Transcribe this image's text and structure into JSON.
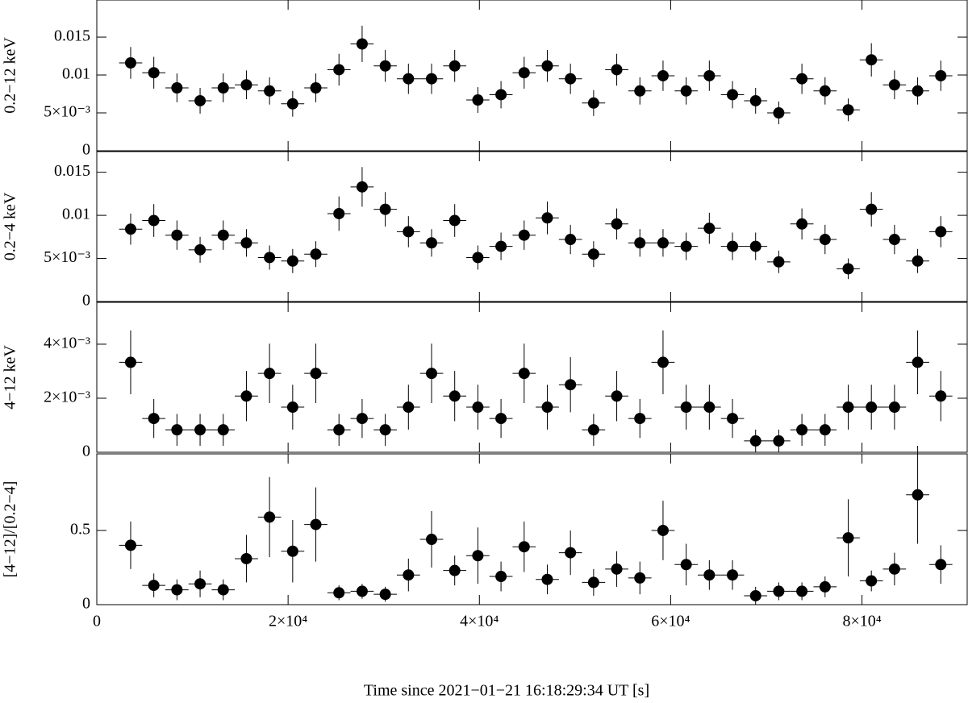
{
  "chart_data": [
    {
      "type": "scatter",
      "ylabel": "0.2−12 keV",
      "color": "#000000",
      "x": [
        3540,
        5960,
        8380,
        10800,
        13220,
        15640,
        18060,
        20480,
        22900,
        25320,
        27740,
        30160,
        32580,
        35000,
        37420,
        39840,
        42260,
        44680,
        47100,
        49520,
        51940,
        54360,
        56780,
        59200,
        61620,
        64040,
        66460,
        68880,
        71300,
        73720,
        76140,
        78560,
        80980,
        83400,
        85820,
        88240
      ],
      "xerr": 1210,
      "xlim": [
        0,
        91000
      ],
      "values": [
        0.0116,
        0.0103,
        0.0083,
        0.0066,
        0.0083,
        0.0087,
        0.0079,
        0.0062,
        0.0083,
        0.0107,
        0.0141,
        0.0112,
        0.0095,
        0.0095,
        0.0112,
        0.0067,
        0.0074,
        0.0103,
        0.0112,
        0.0095,
        0.0063,
        0.0107,
        0.0079,
        0.0099,
        0.0079,
        0.0099,
        0.0074,
        0.0066,
        0.005,
        0.0095,
        0.0079,
        0.0054,
        0.012,
        0.0087,
        0.0079,
        0.0099
      ],
      "yerr": [
        0.0021,
        0.0021,
        0.0019,
        0.0017,
        0.0019,
        0.0019,
        0.0018,
        0.0017,
        0.0019,
        0.0021,
        0.0024,
        0.0021,
        0.002,
        0.002,
        0.0021,
        0.0017,
        0.0018,
        0.0021,
        0.0021,
        0.002,
        0.0017,
        0.0021,
        0.0018,
        0.002,
        0.0018,
        0.002,
        0.0018,
        0.0017,
        0.0015,
        0.002,
        0.0018,
        0.0015,
        0.0022,
        0.0019,
        0.0018,
        0.002
      ],
      "ylim": [
        0,
        0.0199
      ],
      "yticks": [
        0,
        {
          "value": 0.005,
          "label": "5×10⁻³"
        },
        0.01,
        0.015
      ]
    },
    {
      "type": "scatter",
      "ylabel": "0.2−4 keV",
      "color": "#000000",
      "x": [
        3540,
        5960,
        8380,
        10800,
        13220,
        15640,
        18060,
        20480,
        22900,
        25320,
        27740,
        30160,
        32580,
        35000,
        37420,
        39840,
        42260,
        44680,
        47100,
        49520,
        51940,
        54360,
        56780,
        59200,
        61620,
        64040,
        66460,
        68880,
        71300,
        73720,
        76140,
        78560,
        80980,
        83400,
        85820,
        88240
      ],
      "xerr": 1210,
      "xlim": [
        0,
        91000
      ],
      "values": [
        0.0084,
        0.0094,
        0.0077,
        0.006,
        0.0077,
        0.0068,
        0.0051,
        0.0047,
        0.0055,
        0.0102,
        0.0133,
        0.0107,
        0.0081,
        0.0068,
        0.0094,
        0.0051,
        0.0064,
        0.0077,
        0.0097,
        0.0072,
        0.0055,
        0.009,
        0.0068,
        0.0068,
        0.0064,
        0.0085,
        0.0064,
        0.0064,
        0.0046,
        0.009,
        0.0072,
        0.0038,
        0.0107,
        0.0072,
        0.0047,
        0.0081
      ],
      "yerr": [
        0.0018,
        0.0019,
        0.0017,
        0.0015,
        0.0017,
        0.0016,
        0.0014,
        0.0014,
        0.0015,
        0.002,
        0.0023,
        0.002,
        0.0018,
        0.0016,
        0.0019,
        0.0014,
        0.0016,
        0.0017,
        0.0019,
        0.0017,
        0.0015,
        0.0018,
        0.0016,
        0.0016,
        0.0016,
        0.0018,
        0.0016,
        0.0016,
        0.0013,
        0.0018,
        0.0017,
        0.0012,
        0.002,
        0.0017,
        0.0014,
        0.0018
      ],
      "ylim": [
        0,
        0.0174
      ],
      "yticks": [
        0,
        {
          "value": 0.005,
          "label": "5×10⁻³"
        },
        0.01,
        0.015
      ]
    },
    {
      "type": "scatter",
      "ylabel": "4−12 keV",
      "color": "#000000",
      "x": [
        3540,
        5960,
        8380,
        10800,
        13220,
        15640,
        18060,
        20480,
        22900,
        25320,
        27740,
        30160,
        32580,
        35000,
        37420,
        39840,
        42260,
        44680,
        47100,
        49520,
        51940,
        54360,
        56780,
        59200,
        61620,
        64040,
        66460,
        68880,
        71300,
        73720,
        76140,
        78560,
        80980,
        83400,
        85820,
        88240
      ],
      "xerr": 1210,
      "xlim": [
        0,
        91000
      ],
      "values": [
        0.00333,
        0.00125,
        0.00083,
        0.00083,
        0.00083,
        0.00208,
        0.00292,
        0.00167,
        0.00292,
        0.00083,
        0.00125,
        0.00083,
        0.00167,
        0.00292,
        0.00208,
        0.00167,
        0.00125,
        0.00292,
        0.00167,
        0.0025,
        0.00083,
        0.00208,
        0.00125,
        0.00333,
        0.00167,
        0.00167,
        0.00125,
        0.00042,
        0.00042,
        0.00083,
        0.00083,
        0.00167,
        0.00167,
        0.00167,
        0.00333,
        0.00208
      ],
      "yerr": [
        0.00118,
        0.00072,
        0.00059,
        0.00059,
        0.00059,
        0.00093,
        0.0011,
        0.00083,
        0.0011,
        0.00059,
        0.00072,
        0.00059,
        0.00083,
        0.0011,
        0.00093,
        0.00083,
        0.00072,
        0.0011,
        0.00083,
        0.00102,
        0.00059,
        0.00093,
        0.00072,
        0.00118,
        0.00083,
        0.00083,
        0.00072,
        0.00042,
        0.00042,
        0.00059,
        0.00059,
        0.00083,
        0.00083,
        0.00083,
        0.00118,
        0.00093
      ],
      "ylim": [
        0,
        0.00555
      ],
      "yticks": [
        0,
        {
          "value": 0.002,
          "label": "2×10⁻³"
        },
        {
          "value": 0.004,
          "label": "4×10⁻³"
        }
      ]
    },
    {
      "type": "scatter",
      "ylabel": "[4−12]/[0.2−4]",
      "color": "#000000",
      "x": [
        3540,
        5960,
        8380,
        10800,
        13220,
        15640,
        18060,
        20480,
        22900,
        25320,
        27740,
        30160,
        32580,
        35000,
        37420,
        39840,
        42260,
        44680,
        47100,
        49520,
        51940,
        54360,
        56780,
        59200,
        61620,
        64040,
        66460,
        68880,
        71300,
        73720,
        76140,
        78560,
        80980,
        83400,
        85820,
        88240
      ],
      "xerr": 1210,
      "xlim": [
        0,
        91000
      ],
      "values": [
        0.4,
        0.13,
        0.1,
        0.14,
        0.1,
        0.31,
        0.59,
        0.36,
        0.54,
        0.08,
        0.09,
        0.07,
        0.2,
        0.44,
        0.23,
        0.33,
        0.19,
        0.39,
        0.17,
        0.35,
        0.15,
        0.24,
        0.18,
        0.5,
        0.27,
        0.2,
        0.2,
        0.06,
        0.09,
        0.09,
        0.12,
        0.45,
        0.16,
        0.24,
        0.74,
        0.27
      ],
      "yerr": [
        0.16,
        0.08,
        0.07,
        0.09,
        0.07,
        0.16,
        0.27,
        0.21,
        0.25,
        0.05,
        0.05,
        0.05,
        0.11,
        0.19,
        0.1,
        0.19,
        0.1,
        0.17,
        0.1,
        0.15,
        0.09,
        0.12,
        0.11,
        0.2,
        0.14,
        0.1,
        0.1,
        0.06,
        0.06,
        0.06,
        0.07,
        0.26,
        0.07,
        0.11,
        0.33,
        0.13
      ],
      "ylim": [
        0,
        1.016
      ],
      "yticks": [
        0,
        0.5
      ],
      "xticks": [
        0,
        {
          "value": 20000,
          "label": "2×10⁴"
        },
        {
          "value": 40000,
          "label": "4×10⁴"
        },
        {
          "value": 60000,
          "label": "6×10⁴"
        },
        {
          "value": 80000,
          "label": "8×10⁴"
        }
      ],
      "xlabel": "Time since 2021−01−21 16:18:29:34 UT [s]"
    }
  ]
}
